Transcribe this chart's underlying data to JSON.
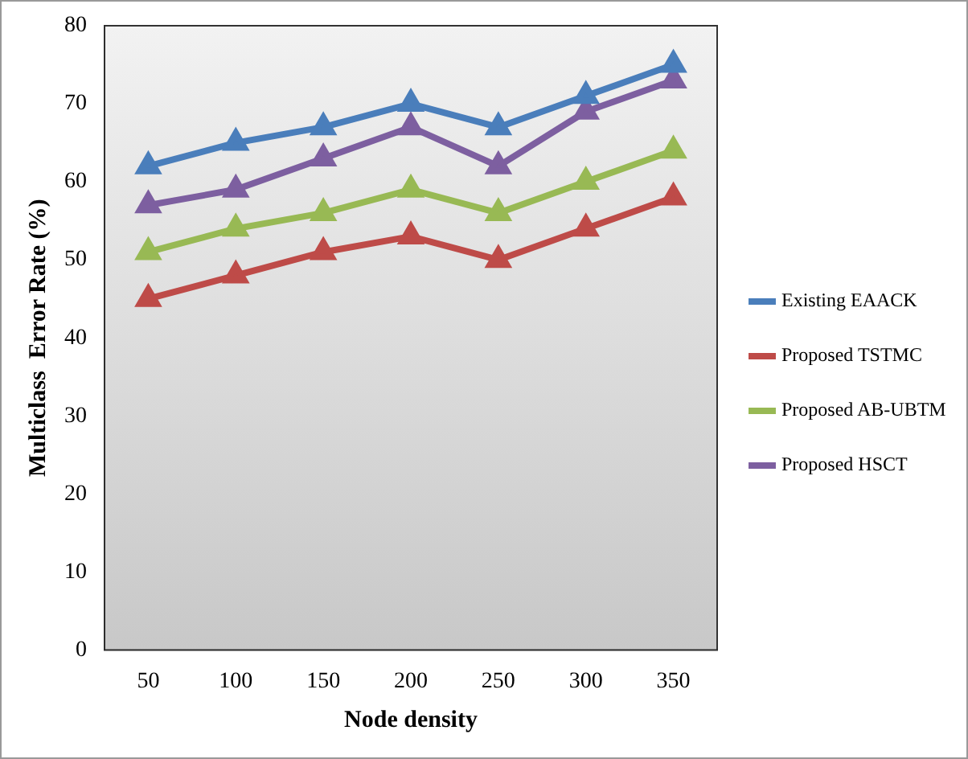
{
  "chart_data": {
    "type": "line",
    "xlabel": "Node density",
    "ylabel": "Multiclass  Error Rate (%)",
    "categories": [
      "50",
      "100",
      "150",
      "200",
      "250",
      "300",
      "350"
    ],
    "series": [
      {
        "name": "Existing EAACK",
        "color": "#4a7ebb",
        "values": [
          62,
          65,
          67,
          70,
          67,
          71,
          75
        ]
      },
      {
        "name": "Proposed TSTMC",
        "color": "#be4b48",
        "values": [
          45,
          48,
          51,
          53,
          50,
          54,
          58
        ]
      },
      {
        "name": "Proposed AB-UBTM",
        "color": "#98b954",
        "values": [
          51,
          54,
          56,
          59,
          56,
          60,
          64
        ]
      },
      {
        "name": "Proposed HSCT",
        "color": "#7d5fa0",
        "values": [
          57,
          59,
          63,
          67,
          62,
          69,
          73
        ]
      }
    ],
    "ylim": [
      0,
      80
    ],
    "yticks": [
      0,
      10,
      20,
      30,
      40,
      50,
      60,
      70,
      80
    ],
    "grid": false,
    "legend": "right",
    "marker": "triangle",
    "line_style": "solid"
  }
}
